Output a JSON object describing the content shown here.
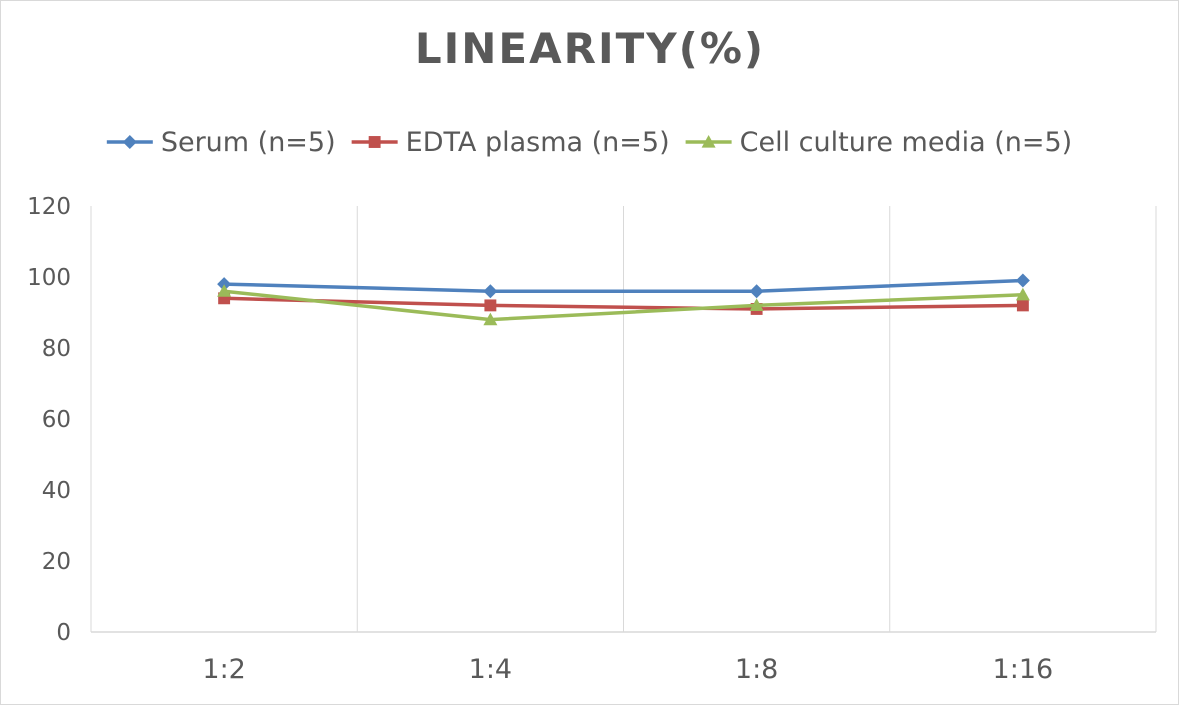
{
  "chart_data": {
    "type": "line",
    "title": "LINEARITY(%)",
    "xlabel": "",
    "ylabel": "",
    "categories": [
      "1:2",
      "1:4",
      "1:8",
      "1:16"
    ],
    "ylim": [
      0,
      120
    ],
    "yticks": [
      0,
      20,
      40,
      60,
      80,
      100,
      120
    ],
    "grid": "vertical",
    "legend_position": "top",
    "series": [
      {
        "name": "Serum (n=5)",
        "values": [
          98,
          96,
          96,
          99
        ],
        "color": "#4f81bd",
        "marker": "diamond"
      },
      {
        "name": "EDTA plasma (n=5)",
        "values": [
          94,
          92,
          91,
          92
        ],
        "color": "#c0504d",
        "marker": "square"
      },
      {
        "name": "Cell culture media (n=5)",
        "values": [
          96,
          88,
          92,
          95
        ],
        "color": "#9bbb59",
        "marker": "triangle"
      }
    ]
  }
}
